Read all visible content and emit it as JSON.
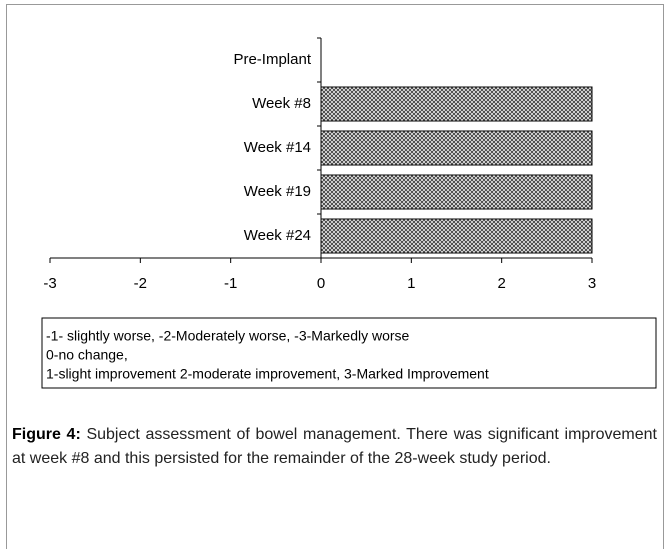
{
  "chart_data": {
    "type": "hbar",
    "categories": [
      "Pre-Implant",
      "Week #8",
      "Week #14",
      "Week #19",
      "Week #24"
    ],
    "values": [
      0,
      3,
      3,
      3,
      3
    ],
    "color": "#999999",
    "xlim": [
      -3,
      3
    ],
    "xticks": [
      -3,
      -2,
      -1,
      0,
      1,
      2,
      3
    ],
    "annotations": [
      "-1- slightly worse, -2-Moderately worse, -3-Markedly worse",
      "0-no change,",
      "1-slight improvement 2-moderate improvement, 3-Marked Improvement"
    ]
  },
  "caption": {
    "label": "Figure 4:",
    "text": "Subject assessment of bowel management. There was significant improvement at week #8 and this persisted for the remainder of the 28-week study period."
  }
}
